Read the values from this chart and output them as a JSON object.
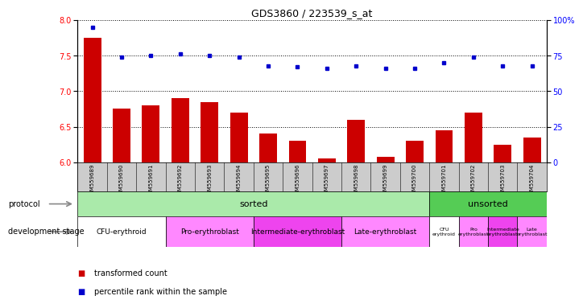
{
  "title": "GDS3860 / 223539_s_at",
  "samples": [
    "GSM559689",
    "GSM559690",
    "GSM559691",
    "GSM559692",
    "GSM559693",
    "GSM559694",
    "GSM559695",
    "GSM559696",
    "GSM559697",
    "GSM559698",
    "GSM559699",
    "GSM559700",
    "GSM559701",
    "GSM559702",
    "GSM559703",
    "GSM559704"
  ],
  "transformed_count": [
    7.75,
    6.75,
    6.8,
    6.9,
    6.85,
    6.7,
    6.4,
    6.3,
    6.05,
    6.6,
    6.08,
    6.3,
    6.45,
    6.7,
    6.25,
    6.35
  ],
  "percentile_rank": [
    95,
    74,
    75,
    76,
    75,
    74,
    68,
    67,
    66,
    68,
    66,
    66,
    70,
    74,
    68,
    68
  ],
  "ylim_left": [
    6.0,
    8.0
  ],
  "ylim_right": [
    0,
    100
  ],
  "yticks_left": [
    6.0,
    6.5,
    7.0,
    7.5,
    8.0
  ],
  "yticks_right": [
    0,
    25,
    50,
    75,
    100
  ],
  "bar_color": "#cc0000",
  "dot_color": "#0000cc",
  "bar_baseline": 6.0,
  "protocol_sorted_count": 12,
  "protocol_unsorted_count": 4,
  "protocol_sorted_label": "sorted",
  "protocol_unsorted_label": "unsorted",
  "protocol_sorted_color": "#aaeaaa",
  "protocol_unsorted_color": "#55cc55",
  "dev_stages": [
    {
      "label": "CFU-erythroid",
      "start": 0,
      "end": 3,
      "color": "#ffffff"
    },
    {
      "label": "Pro-erythroblast",
      "start": 3,
      "end": 6,
      "color": "#ff88ff"
    },
    {
      "label": "Intermediate-erythroblast",
      "start": 6,
      "end": 9,
      "color": "#ee44ee"
    },
    {
      "label": "Late-erythroblast",
      "start": 9,
      "end": 12,
      "color": "#ff88ff"
    },
    {
      "label": "CFU-erythroid",
      "start": 12,
      "end": 13,
      "color": "#ffffff"
    },
    {
      "label": "Pro-erythroblast",
      "start": 13,
      "end": 14,
      "color": "#ff88ff"
    },
    {
      "label": "Intermediate-erythroblast",
      "start": 14,
      "end": 15,
      "color": "#ee44ee"
    },
    {
      "label": "Late-erythroblast",
      "start": 15,
      "end": 16,
      "color": "#ff88ff"
    }
  ],
  "legend_bar_label": "transformed count",
  "legend_dot_label": "percentile rank within the sample",
  "protocol_label": "protocol",
  "dev_stage_label": "development stage",
  "label_col_color": "#dddddd",
  "sample_row_color": "#cccccc"
}
